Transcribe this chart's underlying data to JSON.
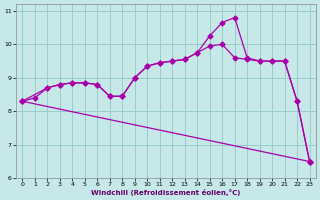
{
  "xlabel": "Windchill (Refroidissement éolien,°C)",
  "bg_color": "#c6e8e8",
  "line_color": "#aa00aa",
  "grid_color": "#99cccc",
  "xlim": [
    -0.5,
    23.5
  ],
  "ylim": [
    6.0,
    11.2
  ],
  "xticks": [
    0,
    1,
    2,
    3,
    4,
    5,
    6,
    7,
    8,
    9,
    10,
    11,
    12,
    13,
    14,
    15,
    16,
    17,
    18,
    19,
    20,
    21,
    22,
    23
  ],
  "yticks": [
    6,
    7,
    8,
    9,
    10,
    11
  ],
  "line1_x": [
    0,
    1,
    2,
    3,
    4,
    5,
    6,
    7,
    8,
    9,
    10,
    11,
    12,
    13,
    14,
    15,
    16,
    17,
    18,
    19,
    20,
    21,
    22,
    23
  ],
  "line1_y": [
    8.3,
    8.4,
    8.7,
    8.8,
    8.85,
    8.85,
    8.8,
    8.45,
    8.45,
    9.0,
    9.35,
    9.45,
    9.5,
    9.55,
    9.75,
    9.95,
    10.0,
    9.6,
    9.55,
    9.5,
    9.5,
    9.5,
    8.3,
    6.5
  ],
  "line2_x": [
    0,
    2,
    3,
    4,
    5,
    6,
    7,
    8,
    9,
    10,
    11,
    12,
    13,
    14,
    15,
    16,
    17,
    18,
    19,
    20,
    21,
    22,
    23
  ],
  "line2_y": [
    8.3,
    8.7,
    8.8,
    8.85,
    8.85,
    8.8,
    8.45,
    8.45,
    9.0,
    9.35,
    9.45,
    9.5,
    9.55,
    9.75,
    10.25,
    10.65,
    10.8,
    9.6,
    9.5,
    9.5,
    9.5,
    8.3,
    6.5
  ],
  "line3_x": [
    0,
    23
  ],
  "line3_y": [
    8.3,
    6.5
  ]
}
